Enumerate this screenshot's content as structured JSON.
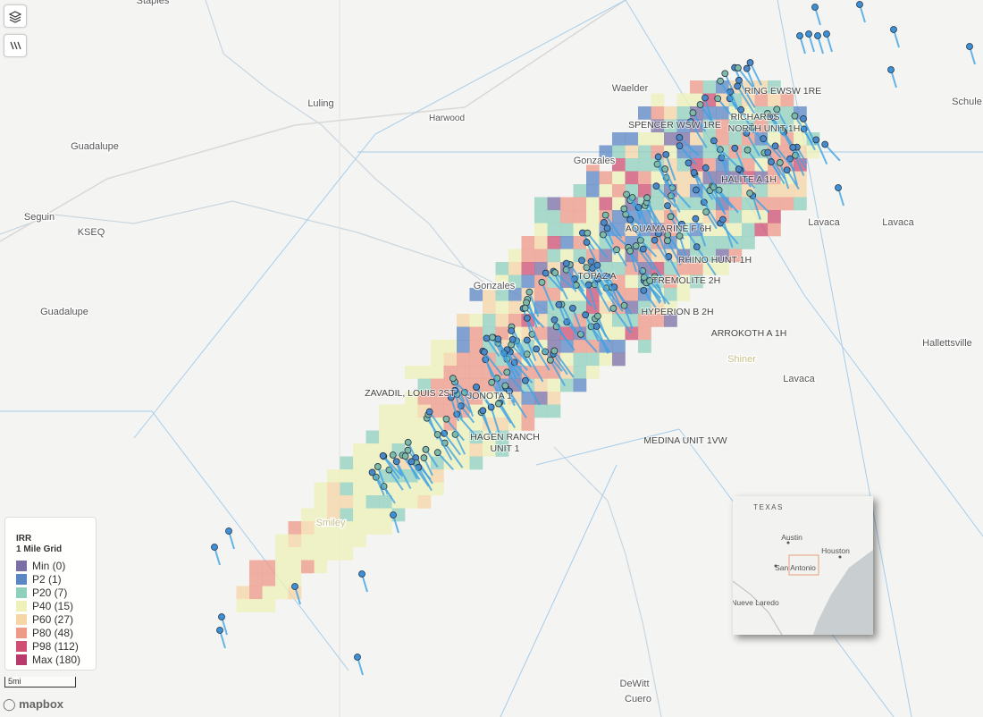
{
  "places": [
    "Luling",
    "Harwood",
    "Waelder",
    "Schule",
    "Guadalupe",
    "Gonzales",
    "Seguin",
    "KSEQ",
    "Lavaca",
    "Lavaca",
    "Gonzales",
    "Guadalupe",
    "Hallettsville",
    "Lavaca",
    "Smiley",
    "Shiner",
    "DeWitt",
    "Cuero",
    "Staples"
  ],
  "wells": [
    "RING EWSW 1RE",
    "RICHARDS",
    "NORTH UNIT 1H",
    "SPENCER WSW 1RE",
    "HALITE A 1H",
    "AQUAMARINE F 6H",
    "RHINO HUNT 1H",
    "TOPAZ A",
    "TREMOLITE 2H",
    "HYPERION B 2H",
    "ARROKOTH A 1H",
    "ZAVADIL, LOUIS 2ST",
    "JONOTA 1",
    "HAGEN RANCH",
    "UNIT 1",
    "MEDINA UNIT 1VW"
  ],
  "legend": {
    "title": "IRR",
    "subtitle": "1 Mile Grid",
    "items": [
      {
        "label": "Min (0)",
        "color": "#7b6fa6"
      },
      {
        "label": "P2 (1)",
        "color": "#5b86c4"
      },
      {
        "label": "P20 (7)",
        "color": "#8fd0bd"
      },
      {
        "label": "P40 (15)",
        "color": "#eef2b8"
      },
      {
        "label": "P60 (27)",
        "color": "#f7d6a6"
      },
      {
        "label": "P80 (48)",
        "color": "#ee9a88"
      },
      {
        "label": "P98 (112)",
        "color": "#cf4f73"
      },
      {
        "label": "Max (180)",
        "color": "#b73a6a"
      }
    ]
  },
  "scale": "5mi",
  "attribution": "mapbox",
  "inset": {
    "labels": [
      "TEXAS",
      "Austin",
      "Houston",
      "San Antonio",
      "Nueve Laredo"
    ]
  }
}
